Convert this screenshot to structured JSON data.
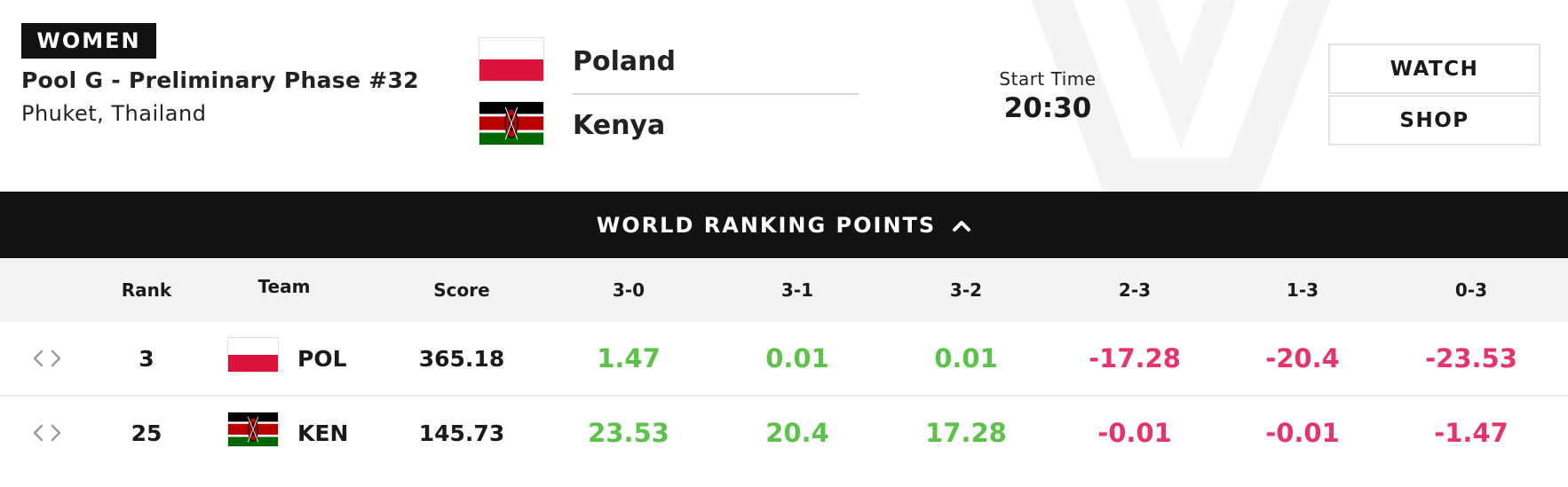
{
  "match": {
    "category": "WOMEN",
    "pool": "Pool G - Preliminary Phase #32",
    "location": "Phuket, Thailand",
    "team_a": {
      "name": "Poland",
      "code": "POL",
      "flag_icon": "poland-flag-icon"
    },
    "team_b": {
      "name": "Kenya",
      "code": "KEN",
      "flag_icon": "kenya-flag-icon"
    },
    "start_time_label": "Start Time",
    "start_time": "20:30"
  },
  "actions": {
    "watch_label": "WATCH",
    "shop_label": "SHOP"
  },
  "ranking": {
    "title": "WORLD RANKING POINTS",
    "toggle_icon": "chevron-up-icon",
    "columns": [
      "Rank",
      "Team",
      "Score",
      "3-0",
      "3-1",
      "3-2",
      "2-3",
      "1-3",
      "0-3"
    ],
    "rows": [
      {
        "rank": "3",
        "team": "POL",
        "score": "365.18",
        "points": [
          "1.47",
          "0.01",
          "0.01",
          "-17.28",
          "-20.4",
          "-23.53"
        ]
      },
      {
        "rank": "25",
        "team": "KEN",
        "score": "145.73",
        "points": [
          "23.53",
          "20.4",
          "17.28",
          "-0.01",
          "-0.01",
          "-1.47"
        ]
      }
    ]
  },
  "colors": {
    "positive": "#5cc24a",
    "negative": "#e4346a",
    "bar_background": "#121212",
    "header_row_background": "#f3f3f3"
  }
}
